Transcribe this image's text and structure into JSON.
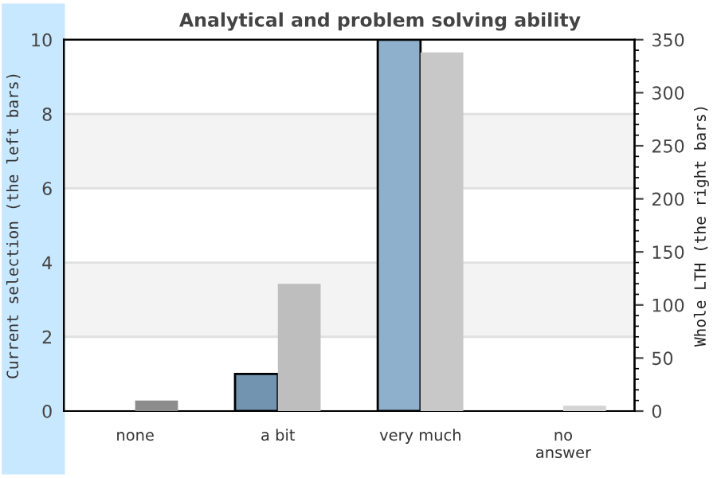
{
  "chart_data": {
    "type": "bar",
    "title": "Analytical and problem solving ability",
    "ylabel": "Current selection (the left bars)",
    "y2label": "Whole LTH (the right bars)",
    "categories": [
      "none",
      "a bit",
      "very much",
      "no\nanswer"
    ],
    "series": [
      {
        "colors": [
          null,
          "#7394b0",
          "#8fb0cc",
          null
        ],
        "values": [
          0,
          1,
          10,
          0
        ]
      },
      {
        "axis": "y2",
        "colors": [
          "#8c8c8c",
          "#bebebe",
          "#c8c8c8",
          "#d4d4d4"
        ],
        "values": [
          10,
          120,
          338,
          5
        ]
      }
    ],
    "ylim": [
      0,
      10
    ],
    "yticks": [
      0,
      2,
      4,
      6,
      8,
      10
    ],
    "y2lim": [
      0,
      350
    ],
    "y2ticks": [
      0,
      50,
      100,
      150,
      200,
      250,
      300,
      350
    ],
    "bands": [
      {
        "axis": "y",
        "from": 2,
        "to": 4,
        "color": "#f3f3f3"
      },
      {
        "axis": "y",
        "from": 6,
        "to": 8,
        "color": "#f3f3f3"
      }
    ],
    "grid": "y",
    "legend": false
  }
}
